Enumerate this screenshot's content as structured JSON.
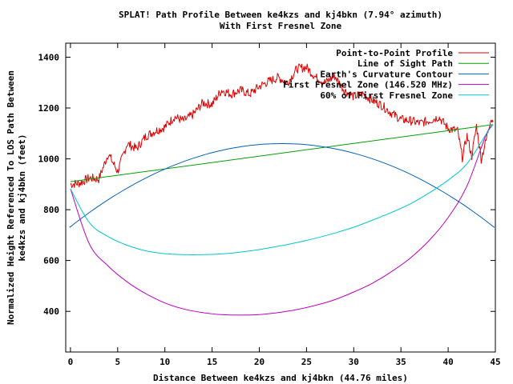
{
  "chart_data": {
    "type": "line",
    "title": "SPLAT! Path Profile Between ke4kzs and kj4bkn (7.94° azimuth)",
    "subtitle": "With First Fresnel Zone",
    "xlabel": "Distance Between ke4kzs and kj4bkn (44.76 miles)",
    "ylabel_line1": "Normalized Height Referenced To LOS Path Between",
    "ylabel_line2": "ke4kzs and kj4bkn (feet)",
    "xlim": [
      -0.5,
      45
    ],
    "ylim": [
      240,
      1455
    ],
    "xticks": [
      0,
      5,
      10,
      15,
      20,
      25,
      30,
      35,
      40,
      45
    ],
    "yticks": [
      400,
      600,
      800,
      1000,
      1200,
      1400
    ],
    "grid": false,
    "legend_position": "top-right",
    "series": [
      {
        "name": "Point-to-Point Profile",
        "color": "#e00000",
        "x": [
          0,
          1,
          2,
          3,
          4,
          5,
          6,
          7,
          8,
          9,
          10,
          11,
          12,
          13,
          14,
          15,
          16,
          17,
          18,
          19,
          20,
          21,
          22,
          23,
          24,
          25,
          26,
          27,
          28,
          29,
          30,
          31,
          32,
          33,
          34,
          35,
          36,
          37,
          38,
          39,
          40,
          41,
          41.5,
          42,
          42.5,
          43,
          43.5,
          44,
          44.5,
          44.76
        ],
        "y": [
          900,
          905,
          925,
          920,
          1020,
          950,
          1060,
          1040,
          1090,
          1110,
          1125,
          1165,
          1150,
          1175,
          1220,
          1215,
          1270,
          1255,
          1270,
          1255,
          1285,
          1305,
          1320,
          1300,
          1355,
          1360,
          1320,
          1300,
          1325,
          1270,
          1245,
          1255,
          1230,
          1210,
          1180,
          1155,
          1150,
          1140,
          1150,
          1165,
          1120,
          1110,
          1005,
          1090,
          1010,
          1130,
          1000,
          1070,
          1160,
          1145
        ]
      },
      {
        "name": "Line of Sight Path",
        "color": "#00a000",
        "x": [
          0,
          44.76
        ],
        "y": [
          910,
          1135
        ]
      },
      {
        "name": "Earth's Curvature Contour",
        "color": "#0060c0",
        "x": [
          -0.1,
          22.4,
          44.9
        ],
        "y": [
          730,
          1060,
          725
        ]
      },
      {
        "name": "First Fresnel Zone (146.520 MHz)",
        "color": "#c000c0",
        "x": [
          0,
          2,
          4,
          6,
          8,
          10,
          12,
          14,
          16,
          18,
          20,
          22,
          24,
          26,
          28,
          30,
          32,
          34,
          36,
          38,
          40,
          42,
          44,
          44.76
        ],
        "y": [
          882,
          665,
          578,
          516,
          469,
          433,
          409,
          395,
          387,
          385,
          387,
          395,
          407,
          424,
          446,
          476,
          511,
          556,
          610,
          679,
          769,
          894,
          1093,
          1135
        ]
      },
      {
        "name": "60% of First Fresnel Zone",
        "color": "#00c8c8",
        "x": [
          0,
          2,
          4,
          6,
          8,
          10,
          12,
          14,
          16,
          18,
          20,
          22,
          24,
          26,
          28,
          30,
          32,
          34,
          36,
          38,
          40,
          42,
          44,
          44.76
        ],
        "y": [
          882,
          749,
          694,
          660,
          638,
          627,
          623,
          623,
          626,
          633,
          643,
          656,
          671,
          688,
          708,
          731,
          759,
          789,
          823,
          866,
          916,
          981,
          1096,
          1135
        ]
      }
    ]
  }
}
